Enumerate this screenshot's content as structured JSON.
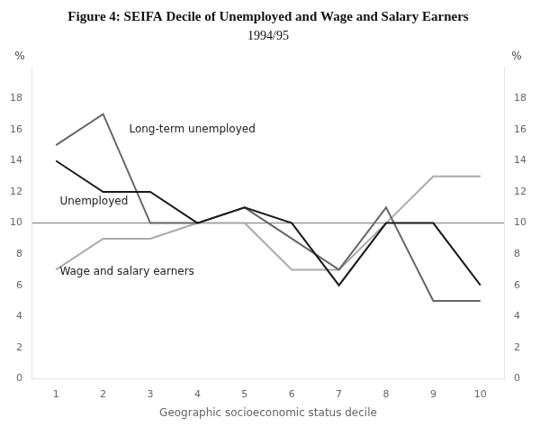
{
  "chart_data": {
    "type": "line",
    "title": "Figure 4: SEIFA Decile of Unemployed and Wage and Salary Earners",
    "subtitle": "1994/95",
    "xlabel": "Geographic socioeconomic status decile",
    "ylabel": "%",
    "y2label": "%",
    "x": [
      1,
      2,
      3,
      4,
      5,
      6,
      7,
      8,
      9,
      10
    ],
    "series": [
      {
        "name": "Wage and salary earners",
        "color": "#aaaaaa",
        "values": [
          7,
          9,
          9,
          10,
          10,
          7,
          7,
          10,
          13,
          13
        ]
      },
      {
        "name": "Long-term unemployed",
        "color": "#666666",
        "values": [
          15,
          17,
          10,
          10,
          11,
          9,
          7,
          11,
          5,
          5
        ]
      },
      {
        "name": "Unemployed",
        "color": "#1a1a1a",
        "values": [
          14,
          12,
          12,
          10,
          11,
          10,
          6,
          10,
          10,
          6
        ]
      }
    ],
    "hlines": [
      {
        "y": 10,
        "color": "#777777"
      }
    ],
    "annotations": [
      {
        "text": "Long-term unemployed",
        "x": 2.55,
        "y": 15.8
      },
      {
        "text": "Unemployed",
        "x": 1.08,
        "y": 11.2
      },
      {
        "text": "Wage and salary earners",
        "x": 1.08,
        "y": 6.7
      }
    ],
    "xlim": [
      0.5,
      10.5
    ],
    "xticks": [
      1,
      2,
      3,
      4,
      5,
      6,
      7,
      8,
      9,
      10
    ],
    "ylim": [
      0,
      20
    ],
    "yticks": [
      0,
      2,
      4,
      6,
      8,
      10,
      12,
      14,
      16,
      18
    ],
    "y2lim": [
      0,
      20
    ],
    "y2ticks": [
      0,
      2,
      4,
      6,
      8,
      10,
      12,
      14,
      16,
      18
    ],
    "grid": false,
    "legend": false
  }
}
